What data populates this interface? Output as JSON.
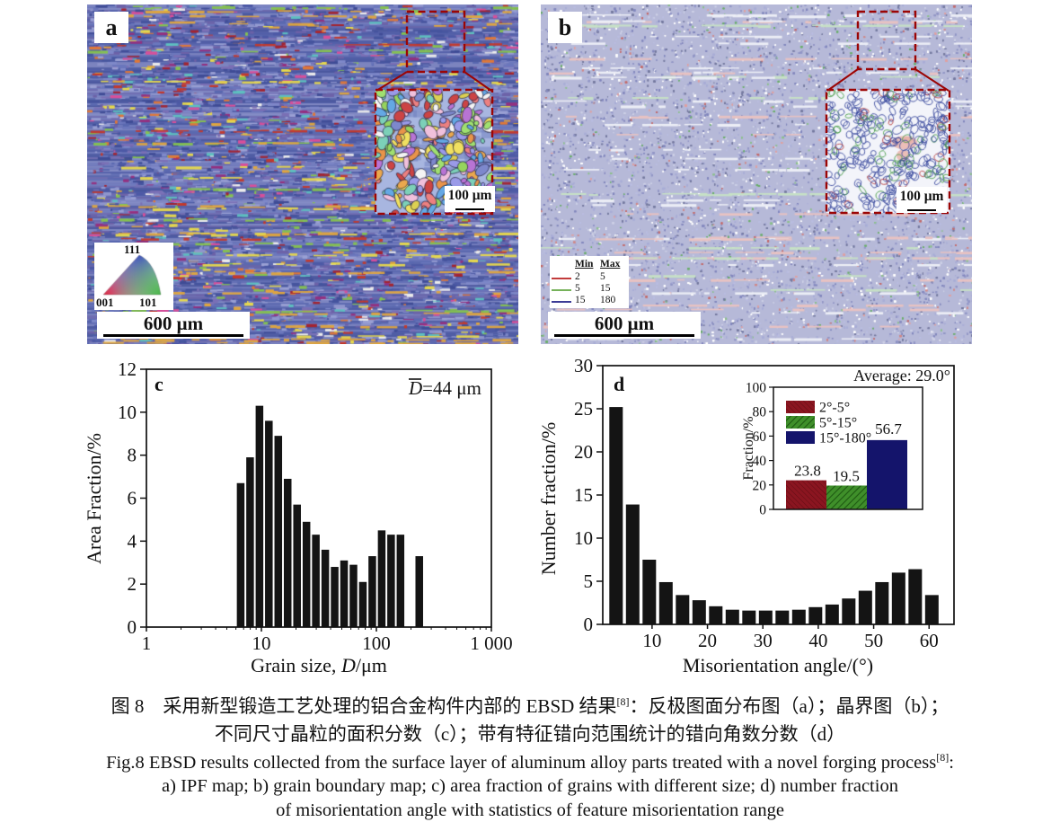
{
  "figure": {
    "panel_a": {
      "label": "a",
      "ipf": {
        "v111": "111",
        "v001": "001",
        "v101": "101"
      },
      "scalebar": "600 μm",
      "inset_scalebar": "100 μm"
    },
    "panel_b": {
      "label": "b",
      "legend": {
        "min_header": "Min",
        "max_header": "Max",
        "rows": [
          {
            "color": "#c23b3b",
            "min": "2",
            "max": "5"
          },
          {
            "color": "#76b25a",
            "min": "5",
            "max": "15"
          },
          {
            "color": "#3c3c96",
            "min": "15",
            "max": "180"
          }
        ]
      },
      "scalebar": "600 μm",
      "inset_scalebar": "100 μm"
    }
  },
  "chart_data": [
    {
      "id": "c",
      "type": "bar",
      "panel_label": "c",
      "xscale": "log",
      "xlabel_pre": "Grain size, ",
      "xlabel_it": "D",
      "xlabel_post": "/μm",
      "ylabel": "Area Fraction/%",
      "mean_var": "D",
      "mean_rest": "=44 μm",
      "xlim": [
        1,
        1000
      ],
      "ylim": [
        0,
        12
      ],
      "xtick_values": [
        1,
        10,
        100,
        1000
      ],
      "xtick_labels": [
        "1",
        "10",
        "100",
        "1 000"
      ],
      "yticks": [
        0,
        2,
        4,
        6,
        8,
        10,
        12
      ],
      "x": [
        6.6,
        7.97,
        9.62,
        11.61,
        14.02,
        16.92,
        20.43,
        24.66,
        29.76,
        35.93,
        43.37,
        52.35,
        63.19,
        76.28,
        92.08,
        111.2,
        134.2,
        162.0,
        236.0
      ],
      "values": [
        6.7,
        7.9,
        10.3,
        9.6,
        8.9,
        6.9,
        5.7,
        4.9,
        4.3,
        3.6,
        2.8,
        3.1,
        2.9,
        2.1,
        3.3,
        4.5,
        4.3,
        4.3,
        3.3
      ],
      "bar_color": "#141414"
    },
    {
      "id": "d",
      "type": "bar",
      "panel_label": "d",
      "xlabel": "Misorientation angle/(°)",
      "ylabel": "Number fraction/%",
      "xlim": [
        1.1,
        64.5
      ],
      "ylim": [
        0,
        30
      ],
      "xtick_values": [
        10,
        20,
        30,
        40,
        50,
        60
      ],
      "xtick_labels": [
        "10",
        "20",
        "30",
        "40",
        "50",
        "60"
      ],
      "yticks": [
        0,
        5,
        10,
        15,
        20,
        25,
        30
      ],
      "x": [
        3.5,
        6.5,
        9.5,
        12.5,
        15.5,
        18.5,
        21.5,
        24.5,
        27.5,
        30.5,
        33.5,
        36.5,
        39.5,
        42.5,
        45.5,
        48.5,
        51.5,
        54.5,
        57.5,
        60.5
      ],
      "values": [
        25.2,
        13.9,
        7.5,
        4.9,
        3.4,
        2.8,
        2.1,
        1.7,
        1.6,
        1.6,
        1.6,
        1.7,
        2.0,
        2.3,
        3.0,
        3.9,
        4.9,
        6.0,
        6.4,
        3.4
      ],
      "bar_color": "#141414",
      "inset": {
        "type": "bar",
        "title": "Average: 29.0°",
        "ylabel": "Fraction/%",
        "ylim": [
          0,
          100
        ],
        "yticks": [
          0,
          20,
          40,
          60,
          80,
          100
        ],
        "categories": [
          "2°-5°",
          "5°-15°",
          "15°-180°"
        ],
        "values": [
          23.8,
          19.5,
          56.7
        ],
        "value_labels": [
          "23.8",
          "19.5",
          "56.7"
        ],
        "colors": [
          "#8b1520",
          "#3f8f2a",
          "#14146b"
        ]
      }
    }
  ],
  "caption": {
    "zh_line1_pre": "图 8　采用新型锻造工艺处理的铝合金构件内部的 EBSD 结果",
    "zh_sup": "[8]",
    "zh_line1_post": "：反极图面分布图（a）；晶界图（b）；",
    "zh_line2": "不同尺寸晶粒的面积分数（c）；带有特征错向范围统计的错向角数分数（d）",
    "en_line1_pre": "Fig.8 EBSD results collected from the surface layer of aluminum alloy parts treated with a novel forging process",
    "en_sup": "[8]",
    "en_line1_post": ":",
    "en_line2": "a) IPF map; b) grain boundary map; c) area fraction of grains with different size; d) number fraction",
    "en_line3": "of misorientation angle with statistics of feature misorientation range"
  }
}
